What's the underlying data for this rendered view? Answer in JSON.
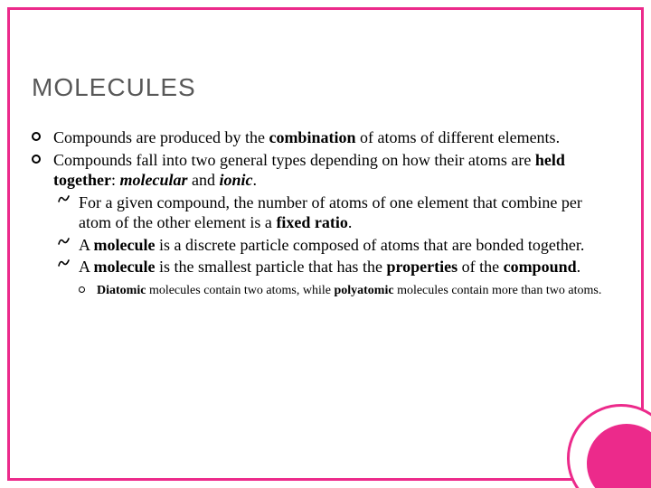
{
  "colors": {
    "accent": "#ec2a8b",
    "frame_border": "#ec2a8b",
    "title_color": "#585858",
    "body_color": "#000000",
    "background": "#ffffff"
  },
  "title": {
    "text": "MOLECULES",
    "fontsize": 28
  },
  "body_fontsize": 18,
  "sub_fontsize": 18,
  "subsub_fontsize": 14,
  "line_height": 1.25,
  "bullets": [
    {
      "segments": [
        {
          "t": "Compounds are produced by the "
        },
        {
          "t": "combination",
          "cls": "b"
        },
        {
          "t": " of atoms of different elements."
        }
      ]
    },
    {
      "segments": [
        {
          "t": "Compounds fall into two general types depending on how their atoms are "
        },
        {
          "t": "held together",
          "cls": "b"
        },
        {
          "t": ": "
        },
        {
          "t": "molecular",
          "cls": "bi"
        },
        {
          "t": " and "
        },
        {
          "t": "ionic",
          "cls": "bi"
        },
        {
          "t": "."
        }
      ],
      "sub": [
        {
          "segments": [
            {
              "t": "For a given compound, the number of atoms of one element that combine per atom of the other element is a "
            },
            {
              "t": "fixed ratio",
              "cls": "b"
            },
            {
              "t": "."
            }
          ]
        },
        {
          "segments": [
            {
              "t": "A "
            },
            {
              "t": "molecule",
              "cls": "b"
            },
            {
              "t": " is a discrete particle composed of atoms that are bonded together."
            }
          ]
        },
        {
          "segments": [
            {
              "t": "A "
            },
            {
              "t": "molecule",
              "cls": "b"
            },
            {
              "t": " is the smallest particle that has the "
            },
            {
              "t": "properties",
              "cls": "b"
            },
            {
              "t": " of the "
            },
            {
              "t": "compound",
              "cls": "b"
            },
            {
              "t": "."
            }
          ],
          "subsub": [
            {
              "segments": [
                {
                  "t": "Diatomic",
                  "cls": "b"
                },
                {
                  "t": " molecules contain two atoms, while "
                },
                {
                  "t": "polyatomic",
                  "cls": "b"
                },
                {
                  "t": " molecules contain more than two atoms."
                }
              ]
            }
          ]
        }
      ]
    }
  ]
}
